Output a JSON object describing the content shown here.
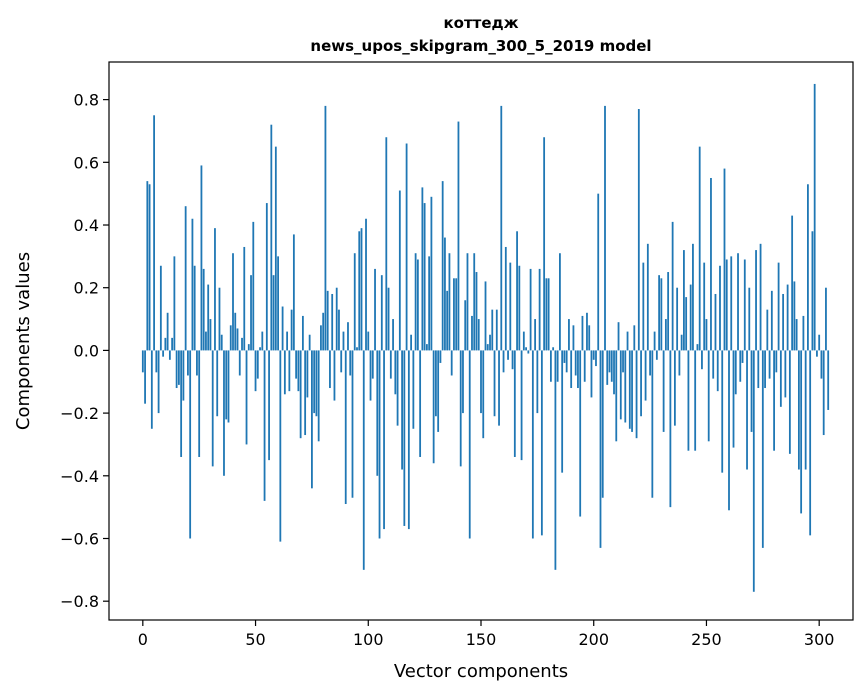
{
  "chart_data": {
    "type": "bar",
    "title_line1": "коттедж",
    "title_line2": "news_upos_skipgram_300_5_2019 model",
    "xlabel": "Vector components",
    "ylabel": "Components values",
    "xlim": [
      -15,
      315
    ],
    "ylim": [
      -0.86,
      0.92
    ],
    "xticks": [
      0,
      50,
      100,
      150,
      200,
      250,
      300
    ],
    "xtick_labels": [
      "0",
      "50",
      "100",
      "150",
      "200",
      "250",
      "300"
    ],
    "yticks": [
      -0.8,
      -0.6,
      -0.4,
      -0.2,
      0.0,
      0.2,
      0.4,
      0.6,
      0.8
    ],
    "ytick_labels": [
      "−0.8",
      "−0.6",
      "−0.4",
      "−0.2",
      "0.0",
      "0.2",
      "0.4",
      "0.6",
      "0.8"
    ],
    "grid": false,
    "bar_color": "#1f77b4",
    "values": [
      -0.07,
      -0.17,
      0.54,
      0.53,
      -0.25,
      0.75,
      -0.07,
      -0.2,
      0.27,
      -0.02,
      0.04,
      0.12,
      -0.03,
      0.04,
      0.3,
      -0.12,
      -0.11,
      -0.34,
      -0.16,
      0.46,
      -0.08,
      -0.6,
      0.42,
      0.27,
      -0.08,
      -0.34,
      0.59,
      0.26,
      0.06,
      0.21,
      0.1,
      -0.37,
      0.39,
      -0.21,
      0.2,
      0.05,
      -0.4,
      -0.22,
      -0.23,
      0.08,
      0.31,
      0.12,
      0.07,
      -0.08,
      0.04,
      0.33,
      -0.3,
      0.02,
      0.24,
      0.41,
      -0.13,
      -0.09,
      0.01,
      0.06,
      -0.48,
      0.47,
      -0.35,
      0.72,
      0.24,
      0.65,
      0.3,
      -0.61,
      0.14,
      -0.14,
      0.06,
      -0.13,
      0.13,
      0.37,
      -0.09,
      -0.13,
      -0.28,
      0.11,
      -0.27,
      -0.15,
      0.05,
      -0.44,
      -0.2,
      -0.21,
      -0.29,
      0.08,
      0.12,
      0.78,
      0.19,
      -0.12,
      0.18,
      -0.16,
      0.2,
      0.13,
      -0.07,
      0.06,
      -0.49,
      0.09,
      -0.08,
      -0.47,
      0.31,
      0.01,
      0.38,
      0.39,
      -0.7,
      0.42,
      0.06,
      -0.16,
      -0.09,
      0.26,
      -0.4,
      -0.6,
      0.24,
      -0.57,
      0.68,
      0.2,
      -0.09,
      0.1,
      -0.14,
      -0.24,
      0.51,
      -0.38,
      -0.56,
      0.66,
      -0.57,
      0.05,
      -0.25,
      0.31,
      0.29,
      -0.34,
      0.52,
      0.47,
      0.02,
      0.3,
      0.49,
      -0.36,
      -0.21,
      -0.26,
      -0.04,
      0.54,
      0.36,
      0.19,
      0.31,
      -0.08,
      0.23,
      0.23,
      0.73,
      -0.37,
      -0.2,
      0.16,
      0.31,
      -0.6,
      0.11,
      0.31,
      0.25,
      0.1,
      -0.2,
      -0.28,
      0.22,
      0.02,
      0.05,
      0.13,
      -0.21,
      0.13,
      -0.24,
      0.78,
      -0.07,
      0.33,
      -0.03,
      0.28,
      -0.06,
      -0.34,
      0.38,
      0.27,
      -0.35,
      0.06,
      0.01,
      -0.01,
      0.26,
      -0.6,
      0.1,
      -0.2,
      0.26,
      -0.59,
      0.68,
      0.23,
      0.23,
      -0.1,
      0.01,
      -0.7,
      -0.1,
      0.31,
      -0.39,
      -0.04,
      -0.07,
      0.1,
      -0.12,
      0.08,
      -0.08,
      -0.12,
      -0.53,
      0.11,
      -0.1,
      0.12,
      0.08,
      -0.15,
      -0.03,
      -0.05,
      0.5,
      -0.63,
      -0.47,
      0.78,
      -0.11,
      -0.07,
      -0.1,
      -0.14,
      -0.29,
      0.09,
      -0.22,
      -0.07,
      -0.23,
      0.06,
      -0.25,
      -0.26,
      0.08,
      -0.28,
      0.77,
      -0.21,
      0.28,
      -0.16,
      0.34,
      -0.08,
      -0.47,
      0.06,
      -0.03,
      0.24,
      0.23,
      -0.26,
      0.1,
      0.25,
      -0.5,
      0.41,
      -0.24,
      0.2,
      -0.08,
      0.05,
      0.32,
      0.17,
      -0.32,
      0.21,
      0.34,
      -0.32,
      0.02,
      0.65,
      -0.06,
      0.28,
      0.1,
      -0.29,
      0.55,
      -0.09,
      0.18,
      -0.13,
      0.27,
      -0.39,
      0.58,
      0.29,
      -0.51,
      0.3,
      -0.31,
      -0.14,
      0.31,
      -0.1,
      -0.04,
      0.29,
      -0.38,
      0.2,
      -0.26,
      -0.77,
      0.32,
      -0.12,
      0.34,
      -0.63,
      -0.12,
      0.13,
      -0.09,
      0.19,
      -0.32,
      -0.07,
      0.28,
      -0.18,
      0.18,
      -0.15,
      0.21,
      -0.33,
      0.43,
      0.22,
      0.1,
      -0.38,
      -0.52,
      0.11,
      -0.38,
      0.53,
      -0.59,
      0.38,
      0.85,
      -0.02,
      0.05,
      -0.09,
      -0.27,
      0.2,
      -0.19
    ]
  }
}
